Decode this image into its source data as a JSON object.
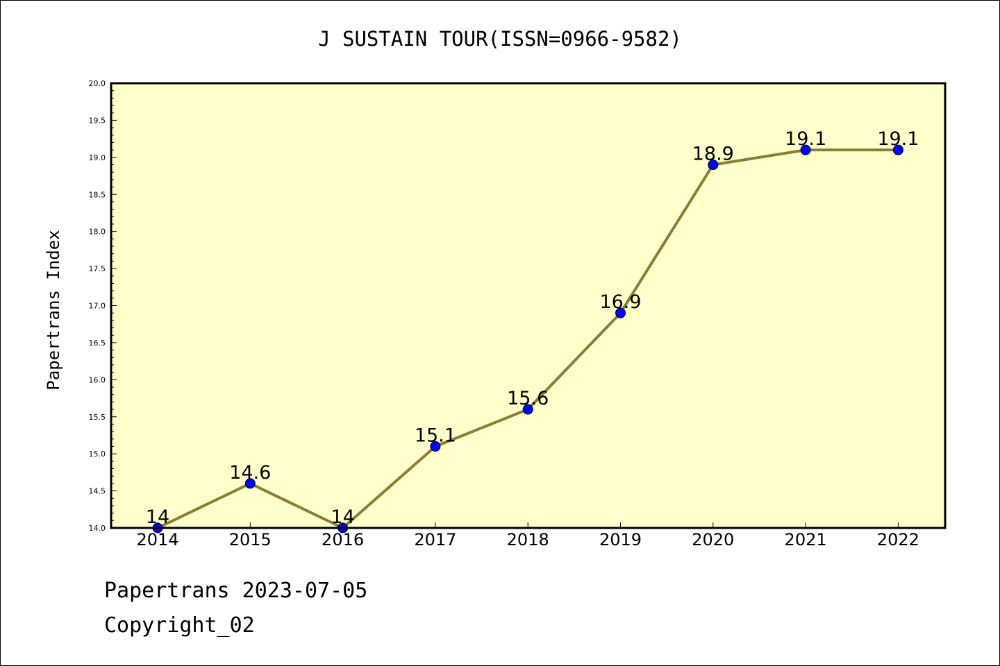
{
  "chart_data": {
    "type": "line",
    "title": "J SUSTAIN TOUR(ISSN=0966-9582)",
    "xlabel": "",
    "ylabel": "Papertrans Index",
    "categories": [
      "2014",
      "2015",
      "2016",
      "2017",
      "2018",
      "2019",
      "2020",
      "2021",
      "2022"
    ],
    "series": [
      {
        "values": [
          14,
          14.6,
          14,
          15.1,
          15.6,
          16.9,
          18.9,
          19.1,
          19.1
        ],
        "labels": [
          "14",
          "14.6",
          "14",
          "15.1",
          "15.6",
          "16.9",
          "18.9",
          "19.1",
          "19.1"
        ]
      }
    ],
    "ylim": [
      14.0,
      20.0
    ],
    "yticks": [
      "14.0",
      "14.5",
      "15.0",
      "15.5",
      "16.0",
      "16.5",
      "17.0",
      "17.5",
      "18.0",
      "18.5",
      "19.0",
      "19.5",
      "20.0"
    ],
    "grid": false,
    "colors": {
      "line": "#8b7d34",
      "marker": "#0000ff",
      "plot_background": "#ffffcc"
    }
  },
  "footer": {
    "line1": "Papertrans 2023-07-05",
    "line2": "Copyright_02"
  }
}
